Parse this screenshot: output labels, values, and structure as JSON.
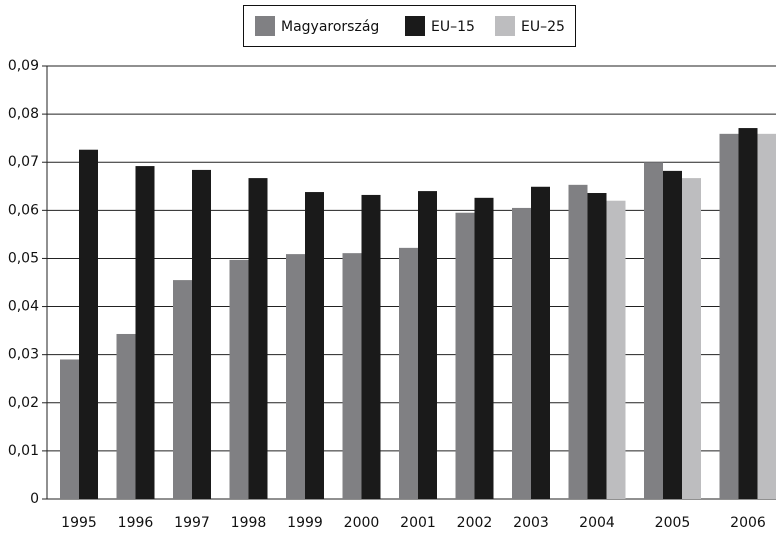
{
  "chart_data": {
    "type": "bar",
    "categories": [
      "1995",
      "1996",
      "1997",
      "1998",
      "1999",
      "2000",
      "2001",
      "2002",
      "2003",
      "2004",
      "2005",
      "2006"
    ],
    "series": [
      {
        "name": "Magyarország",
        "color": "#808083",
        "values": [
          0.029,
          0.0343,
          0.0455,
          0.0497,
          0.0509,
          0.0511,
          0.0522,
          0.0595,
          0.0605,
          0.0653,
          0.07,
          0.0759
        ]
      },
      {
        "name": "EU–15",
        "color": "#1a1a1a",
        "values": [
          0.0726,
          0.0692,
          0.0684,
          0.0667,
          0.0638,
          0.0632,
          0.064,
          0.0626,
          0.0649,
          0.0636,
          0.0682,
          0.0771
        ]
      },
      {
        "name": "EU–25",
        "color": "#bdbdbf",
        "values": [
          null,
          null,
          null,
          null,
          null,
          null,
          null,
          null,
          null,
          0.062,
          0.0667,
          0.0759
        ]
      }
    ],
    "ylim": [
      0,
      0.09
    ],
    "yticks": [
      0,
      {
        "value": 0.01,
        "label": "0,01"
      },
      {
        "value": 0.02,
        "label": "0,02"
      },
      {
        "value": 0.03,
        "label": "0,03"
      },
      {
        "value": 0.04,
        "label": "0,04"
      },
      {
        "value": 0.05,
        "label": "0,05"
      },
      {
        "value": 0.06,
        "label": "0,06"
      },
      {
        "value": 0.07,
        "label": "0,07"
      },
      {
        "value": 0.08,
        "label": "0,08"
      },
      {
        "value": 0.09,
        "label": "0,09"
      }
    ],
    "grid": true,
    "legend": "top"
  }
}
